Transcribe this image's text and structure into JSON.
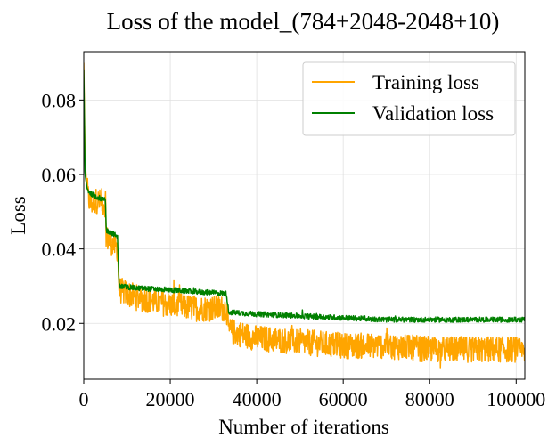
{
  "chart_data": {
    "type": "line",
    "title": "Loss of the model_(784+2048-2048+10)",
    "xlabel": "Number of iterations",
    "ylabel": "Loss",
    "xlim": [
      0,
      102000
    ],
    "ylim": [
      0.005,
      0.093
    ],
    "xticks": [
      0,
      20000,
      40000,
      60000,
      80000,
      100000
    ],
    "xtick_labels": [
      "0",
      "20000",
      "40000",
      "60000",
      "80000",
      "100000"
    ],
    "yticks": [
      0.02,
      0.04,
      0.06,
      0.08
    ],
    "ytick_labels": [
      "0.02",
      "0.04",
      "0.06",
      "0.08"
    ],
    "grid": true,
    "legend_position": "top-right",
    "series": [
      {
        "name": "Training loss",
        "color": "#ffa500",
        "x": [
          0,
          300,
          800,
          1500,
          3000,
          5000,
          5200,
          7000,
          7800,
          8200,
          12000,
          20000,
          26000,
          33000,
          33500,
          40000,
          50000,
          60000,
          70000,
          80000,
          90000,
          100000,
          102000
        ],
        "values": [
          0.09,
          0.064,
          0.055,
          0.052,
          0.053,
          0.052,
          0.043,
          0.041,
          0.04,
          0.029,
          0.027,
          0.025,
          0.024,
          0.024,
          0.018,
          0.016,
          0.015,
          0.014,
          0.014,
          0.013,
          0.013,
          0.013,
          0.012
        ],
        "noise": 0.0035
      },
      {
        "name": "Validation loss",
        "color": "#008000",
        "x": [
          0,
          300,
          800,
          1500,
          3000,
          5000,
          5200,
          7000,
          7800,
          8200,
          12000,
          20000,
          26000,
          33000,
          33500,
          40000,
          50000,
          60000,
          70000,
          80000,
          90000,
          100000,
          102000
        ],
        "values": [
          0.088,
          0.06,
          0.056,
          0.055,
          0.054,
          0.053,
          0.045,
          0.044,
          0.043,
          0.03,
          0.0295,
          0.029,
          0.0285,
          0.028,
          0.023,
          0.0225,
          0.022,
          0.0215,
          0.021,
          0.021,
          0.021,
          0.021,
          0.021
        ],
        "noise": 0.0007
      }
    ]
  }
}
